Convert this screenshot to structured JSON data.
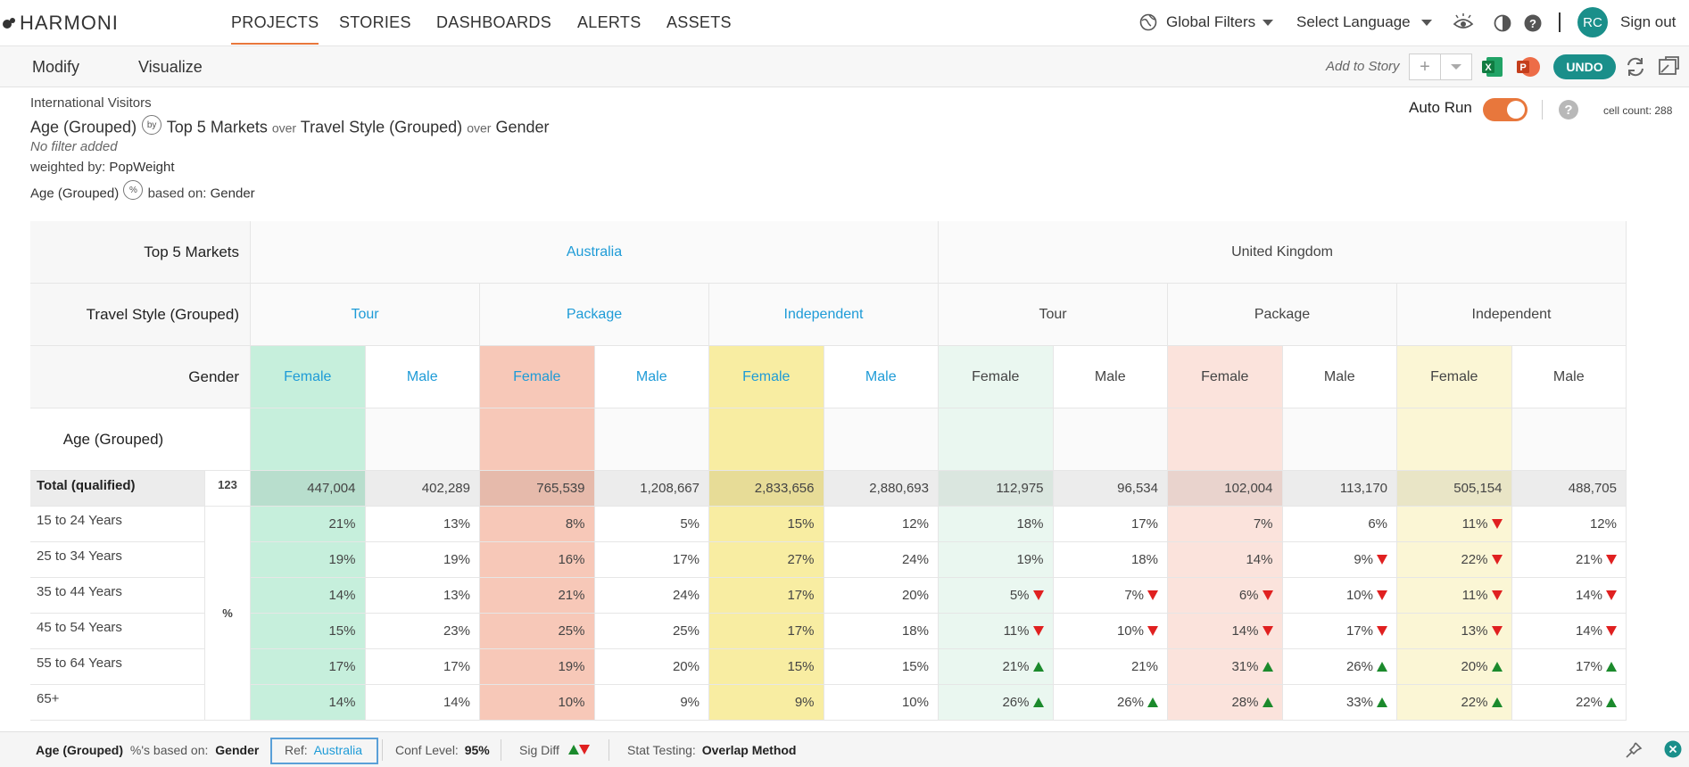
{
  "app": {
    "logo_text": "HARMONI"
  },
  "nav": {
    "tabs": [
      "PROJECTS",
      "STORIES",
      "DASHBOARDS",
      "ALERTS",
      "ASSETS"
    ],
    "global_filters": "Global Filters",
    "select_language": "Select Language",
    "avatar_initials": "RC",
    "sign_out": "Sign out"
  },
  "toolbar": {
    "modify": "Modify",
    "visualize": "Visualize",
    "add_to_story": "Add to Story",
    "undo": "UNDO"
  },
  "info": {
    "dataset": "International Visitors",
    "row_var": "Age (Grouped)",
    "by": "by",
    "col_var1": "Top 5 Markets",
    "over1": "over",
    "col_var2": "Travel Style (Grouped)",
    "over2": "over",
    "col_var3": "Gender",
    "no_filter": "No filter added",
    "weighted_label": "weighted by:",
    "weighted_value": "PopWeight",
    "pct_var": "Age (Grouped)",
    "pct_symbol": "%",
    "based_label": "based on:",
    "based_value": "Gender",
    "auto_run": "Auto Run",
    "cell_count": "cell count: 288"
  },
  "table": {
    "header_labels": {
      "markets": "Top 5 Markets",
      "travel": "Travel Style (Grouped)",
      "gender": "Gender",
      "age": "Age (Grouped)"
    },
    "markets": [
      "Australia",
      "United Kingdom"
    ],
    "travel_styles": [
      "Tour",
      "Package",
      "Independent"
    ],
    "genders": [
      "Female",
      "Male"
    ],
    "base_count": "123",
    "pct_label": "%",
    "total_label": "Total (qualified)",
    "totals": [
      "447,004",
      "402,289",
      "765,539",
      "1,208,667",
      "2,833,656",
      "2,880,693",
      "112,975",
      "96,534",
      "102,004",
      "113,170",
      "505,154",
      "488,705"
    ],
    "rows": [
      {
        "label": "15 to 24 Years",
        "values": [
          "21%",
          "13%",
          "8%",
          "5%",
          "15%",
          "12%",
          "18%",
          "17%",
          "7%",
          "6%",
          "11%",
          "12%"
        ],
        "sig": [
          "",
          "",
          "",
          "",
          "",
          "",
          "",
          "",
          "",
          "",
          "d",
          ""
        ]
      },
      {
        "label": "25 to 34 Years",
        "values": [
          "19%",
          "19%",
          "16%",
          "17%",
          "27%",
          "24%",
          "19%",
          "18%",
          "14%",
          "9%",
          "22%",
          "21%"
        ],
        "sig": [
          "",
          "",
          "",
          "",
          "",
          "",
          "",
          "",
          "",
          "d",
          "d",
          "d"
        ]
      },
      {
        "label": "35 to 44 Years",
        "values": [
          "14%",
          "13%",
          "21%",
          "24%",
          "17%",
          "20%",
          "5%",
          "7%",
          "6%",
          "10%",
          "11%",
          "14%"
        ],
        "sig": [
          "",
          "",
          "",
          "",
          "",
          "",
          "d",
          "d",
          "d",
          "d",
          "d",
          "d"
        ]
      },
      {
        "label": "45 to 54 Years",
        "values": [
          "15%",
          "23%",
          "25%",
          "25%",
          "17%",
          "18%",
          "11%",
          "10%",
          "14%",
          "17%",
          "13%",
          "14%"
        ],
        "sig": [
          "",
          "",
          "",
          "",
          "",
          "",
          "d",
          "d",
          "d",
          "d",
          "d",
          "d"
        ]
      },
      {
        "label": "55 to 64 Years",
        "values": [
          "17%",
          "17%",
          "19%",
          "20%",
          "15%",
          "15%",
          "21%",
          "21%",
          "31%",
          "26%",
          "20%",
          "17%"
        ],
        "sig": [
          "",
          "",
          "",
          "",
          "",
          "",
          "u",
          "",
          "u",
          "u",
          "u",
          "u"
        ]
      },
      {
        "label": "65+",
        "values": [
          "14%",
          "14%",
          "10%",
          "9%",
          "9%",
          "10%",
          "26%",
          "26%",
          "28%",
          "33%",
          "22%",
          "22%"
        ],
        "sig": [
          "",
          "",
          "",
          "",
          "",
          "",
          "u",
          "u",
          "u",
          "u",
          "u",
          "u"
        ]
      }
    ]
  },
  "colors": {
    "accent": "#e8773c",
    "teal": "#1a8f8a",
    "link_blue": "#1e9bd7",
    "col_green": "#c6efdc",
    "col_red": "#f7c8b8",
    "col_yellow": "#f8eda2",
    "col_green_light": "#eaf7f0",
    "col_red_light": "#fbe3dc",
    "col_yellow_light": "#fbf6d5"
  },
  "bottom": {
    "row_var": "Age (Grouped)",
    "based_label": "%'s based on:",
    "based_value": "Gender",
    "ref_label": "Ref:",
    "ref_value": "Australia",
    "conf_label": "Conf Level:",
    "conf_value": "95%",
    "sig_label": "Sig Diff",
    "stat_label": "Stat Testing:",
    "stat_value": "Overlap Method"
  }
}
